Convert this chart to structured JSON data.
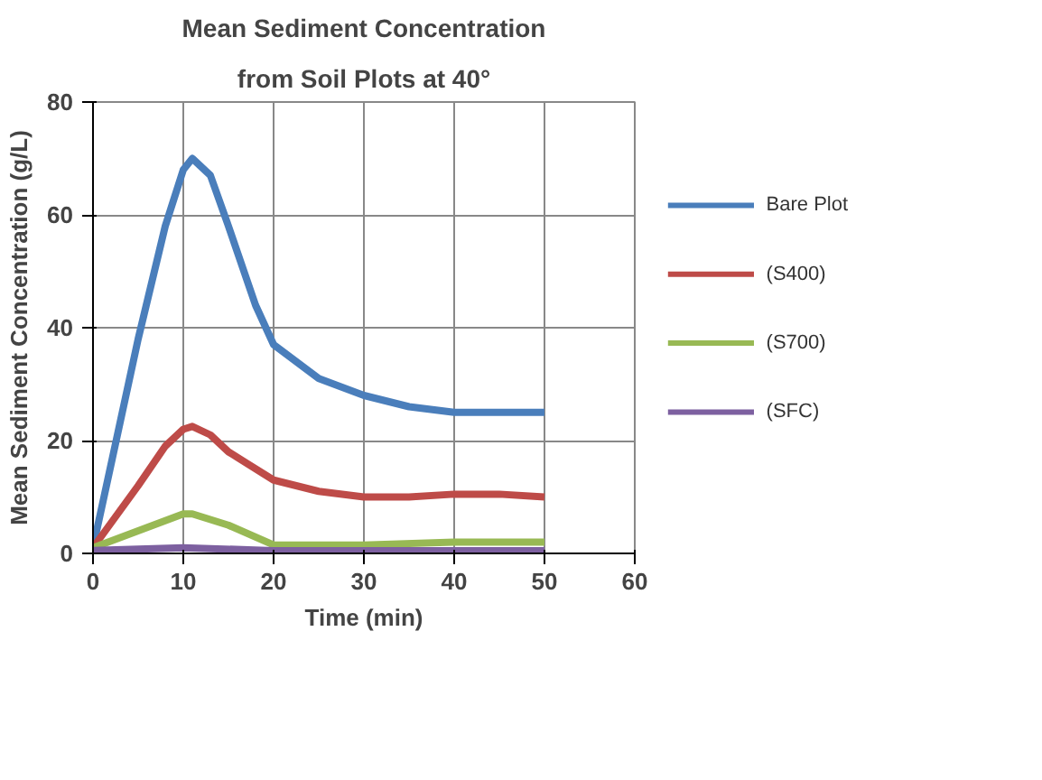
{
  "chart_data": {
    "type": "line",
    "title": "Mean Sediment Concentration",
    "subtitle": "from Soil Plots at 40°",
    "xlabel": "Time (min)",
    "ylabel": "Mean Sediment Concentration (g/L)",
    "xlim": [
      0,
      60
    ],
    "xticks": [
      0,
      10,
      20,
      30,
      40,
      50,
      60
    ],
    "ylim": [
      0,
      80
    ],
    "yticks": [
      0,
      20,
      40,
      60,
      80
    ],
    "grid": true,
    "legend": "right",
    "marker": "none",
    "line_style": "solid",
    "series": [
      {
        "name": "Bare Plot",
        "color": "#4a7ebb",
        "x": [
          0,
          5,
          8,
          10,
          11,
          13,
          15,
          18,
          20,
          25,
          30,
          35,
          40,
          45,
          50
        ],
        "values": [
          1,
          38,
          58,
          68,
          70,
          67,
          58,
          44,
          37,
          31,
          28,
          26,
          25,
          25,
          25
        ]
      },
      {
        "name": "(S400)",
        "color": "#be4b48",
        "x": [
          0,
          5,
          8,
          10,
          11,
          13,
          15,
          20,
          25,
          30,
          35,
          40,
          45,
          50
        ],
        "values": [
          1,
          12,
          19,
          22,
          22.5,
          21,
          18,
          13,
          11,
          10,
          10,
          10.5,
          10.5,
          10
        ]
      },
      {
        "name": "(S700)",
        "color": "#98b954",
        "x": [
          0,
          5,
          10,
          11,
          15,
          20,
          30,
          40,
          50
        ],
        "values": [
          1,
          4,
          7,
          7,
          5,
          1.5,
          1.5,
          2,
          2
        ]
      },
      {
        "name": "(SFC)",
        "color": "#7d60a0",
        "x": [
          0,
          10,
          20,
          30,
          40,
          50
        ],
        "values": [
          0.5,
          1,
          0.5,
          0.5,
          0.5,
          0.5
        ]
      }
    ]
  }
}
